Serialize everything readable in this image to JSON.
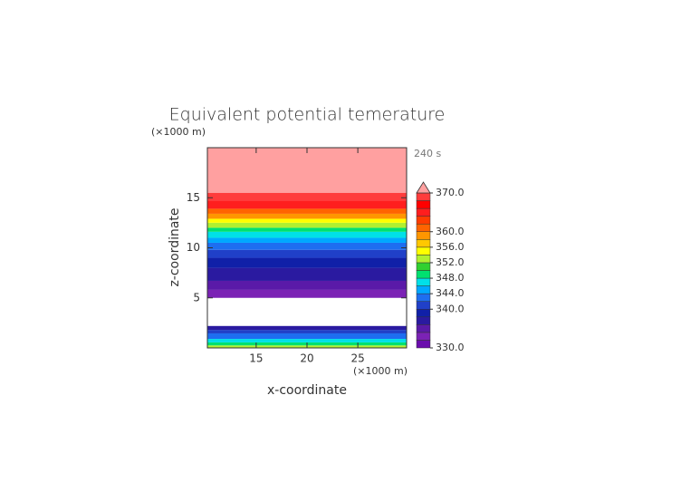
{
  "chart_data": {
    "type": "contour",
    "title": "Equivalent potential temerature",
    "time_label": "240 s",
    "x_label": "x-coordinate",
    "x_unit": "(×1000 m)",
    "y_label": "z-coordinate",
    "y_unit": "(×1000 m)",
    "xlim": [
      10.2,
      29.8
    ],
    "xticks": [
      15,
      20,
      25
    ],
    "ylim": [
      0,
      20
    ],
    "yticks": [
      5,
      10,
      15
    ],
    "z_bins": [
      0,
      0.25,
      0.55,
      0.9,
      1.45,
      1.8,
      2.2,
      5.0,
      5.8,
      6.7,
      8.0,
      9.0,
      9.8,
      10.5,
      11.0,
      11.6,
      12.0,
      12.5,
      12.9,
      13.4,
      13.9,
      14.7,
      15.5,
      20
    ],
    "values": [
      353,
      349,
      346,
      343,
      341,
      337,
      328,
      333,
      335,
      337,
      339,
      341,
      343,
      345,
      347,
      349,
      352,
      355,
      358,
      361,
      365,
      369,
      372
    ],
    "colorbar": {
      "levels": [
        330,
        332,
        334,
        336,
        338,
        340,
        342,
        344,
        346,
        348,
        350,
        352,
        354,
        356,
        358,
        360,
        362,
        364,
        366,
        368,
        370
      ],
      "colors": [
        "#6a0dad",
        "#7b22b5",
        "#5a1aa8",
        "#2a1aa0",
        "#1020a8",
        "#2040c8",
        "#1e6ef0",
        "#00a8ff",
        "#00e0e8",
        "#00e070",
        "#30d030",
        "#b0f030",
        "#ffff00",
        "#ffc800",
        "#ff9600",
        "#ff6400",
        "#ff3c00",
        "#ff1e1e",
        "#ff0000",
        "#ff3c3c"
      ],
      "over_color": "#ffa0a0",
      "ticks": [
        {
          "value": 330,
          "label": "330.0"
        },
        {
          "value": 340,
          "label": "340.0"
        },
        {
          "value": 344,
          "label": "344.0"
        },
        {
          "value": 348,
          "label": "348.0"
        },
        {
          "value": 352,
          "label": "352.0"
        },
        {
          "value": 356,
          "label": "356.0"
        },
        {
          "value": 360,
          "label": "360.0"
        },
        {
          "value": 370,
          "label": "370.0"
        }
      ]
    }
  }
}
